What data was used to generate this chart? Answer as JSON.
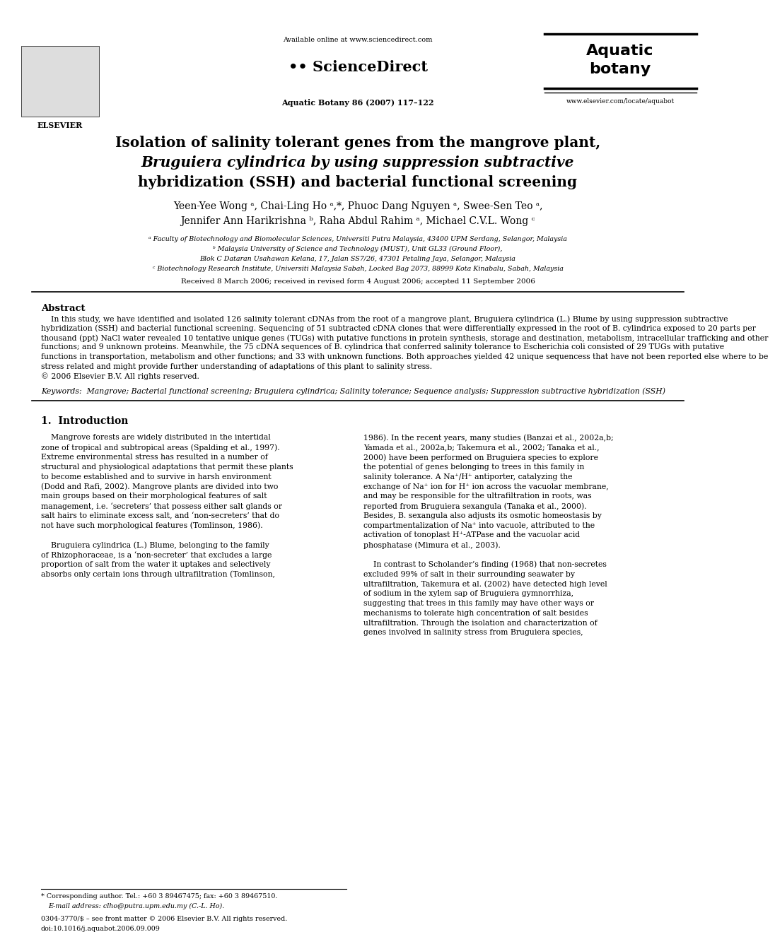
{
  "bg_color": "#ffffff",
  "title_line1": "Isolation of salinity tolerant genes from the mangrove plant,",
  "title_line2_italic": "Bruguiera cylindrica",
  "title_line2_rest": " by using suppression subtractive",
  "title_line3": "hybridization (SSH) and bacterial functional screening",
  "authors_line1": "Yeen-Yee Wong ᵃ, Chai-Ling Ho ᵃ,*, Phuoc Dang Nguyen ᵃ, Swee-Sen Teo ᵃ,",
  "authors_line2": "Jennifer Ann Harikrishna ᵇ, Raha Abdul Rahim ᵃ, Michael C.V.L. Wong ᶜ",
  "affil_a": "ᵃ Faculty of Biotechnology and Biomolecular Sciences, Universiti Putra Malaysia, 43400 UPM Serdang, Selangor, Malaysia",
  "affil_b1": "ᵇ Malaysia University of Science and Technology (MUST), Unit GL33 (Ground Floor),",
  "affil_b2": "Blok C Dataran Usahawan Kelana, 17, Jalan SS7/26, 47301 Petaling Jaya, Selangor, Malaysia",
  "affil_c": "ᶜ Biotechnology Research Institute, Universiti Malaysia Sabah, Locked Bag 2073, 88999 Kota Kinabalu, Sabah, Malaysia",
  "received": "Received 8 March 2006; received in revised form 4 August 2006; accepted 11 September 2006",
  "abstract_title": "Abstract",
  "keywords_text": "Keywords:  Mangrove; Bacterial functional screening; Bruguiera cylindrica; Salinity tolerance; Sequence analysis; Suppression subtractive hybridization (SSH)",
  "section1_title": "1.  Introduction",
  "footer_issn": "0304-3770/$ – see front matter © 2006 Elsevier B.V. All rights reserved.",
  "footer_doi": "doi:10.1016/j.aquabot.2006.09.009",
  "journal_header_text": "Aquatic\nbotany",
  "sciencedirect_text": "ScienceDirect",
  "available_online": "Available online at www.sciencedirect.com",
  "journal_info": "Aquatic Botany 86 (2007) 117–122",
  "elsevier_url": "www.elsevier.com/locate/aquabot",
  "abstract_lines": [
    "    In this study, we have identified and isolated 126 salinity tolerant cDNAs from the root of a mangrove plant, Bruguiera cylindrica (L.) Blume by using suppression subtractive",
    "hybridization (SSH) and bacterial functional screening. Sequencing of 51 subtracted cDNA clones that were differentially expressed in the root of B. cylindrica exposed to 20 parts per",
    "thousand (ppt) NaCl water revealed 10 tentative unique genes (TUGs) with putative functions in protein synthesis, storage and destination, metabolism, intracellular trafficking and other",
    "functions; and 9 unknown proteins. Meanwhile, the 75 cDNA sequences of B. cylindrica that conferred salinity tolerance to Escherichia coli consisted of 29 TUGs with putative",
    "functions in transportation, metabolism and other functions; and 33 with unknown functions. Both approaches yielded 42 unique sequencess that have not been reported else where to be",
    "stress related and might provide further understanding of adaptations of this plant to salinity stress.",
    "© 2006 Elsevier B.V. All rights reserved."
  ],
  "intro_left_lines": [
    "    Mangrove forests are widely distributed in the intertidal",
    "zone of tropical and subtropical areas (Spalding et al., 1997).",
    "Extreme environmental stress has resulted in a number of",
    "structural and physiological adaptations that permit these plants",
    "to become established and to survive in harsh environment",
    "(Dodd and Rafi, 2002). Mangrove plants are divided into two",
    "main groups based on their morphological features of salt",
    "management, i.e. ‘secreters’ that possess either salt glands or",
    "salt hairs to eliminate excess salt, and ‘non-secreters’ that do",
    "not have such morphological features (Tomlinson, 1986).",
    "",
    "    Bruguiera cylindrica (L.) Blume, belonging to the family",
    "of Rhizophoraceae, is a ‘non-secreter’ that excludes a large",
    "proportion of salt from the water it uptakes and selectively",
    "absorbs only certain ions through ultrafiltration (Tomlinson,"
  ],
  "intro_right_lines": [
    "1986). In the recent years, many studies (Banzai et al., 2002a,b;",
    "Yamada et al., 2002a,b; Takemura et al., 2002; Tanaka et al.,",
    "2000) have been performed on Bruguiera species to explore",
    "the potential of genes belonging to trees in this family in",
    "salinity tolerance. A Na⁺/H⁺ antiporter, catalyzing the",
    "exchange of Na⁺ ion for H⁺ ion across the vacuolar membrane,",
    "and may be responsible for the ultrafiltration in roots, was",
    "reported from Bruguiera sexangula (Tanaka et al., 2000).",
    "Besides, B. sexangula also adjusts its osmotic homeostasis by",
    "compartmentalization of Na⁺ into vacuole, attributed to the",
    "activation of tonoplast H⁺-ATPase and the vacuolar acid",
    "phosphatase (Mimura et al., 2003).",
    "",
    "    In contrast to Scholander’s finding (1968) that non-secretes",
    "excluded 99% of salt in their surrounding seawater by",
    "ultrafiltration, Takemura et al. (2002) have detected high level",
    "of sodium in the xylem sap of Bruguiera gymnorrhiza,",
    "suggesting that trees in this family may have other ways or",
    "mechanisms to tolerate high concentration of salt besides",
    "ultrafiltration. Through the isolation and characterization of",
    "genes involved in salinity stress from Bruguiera species,"
  ]
}
